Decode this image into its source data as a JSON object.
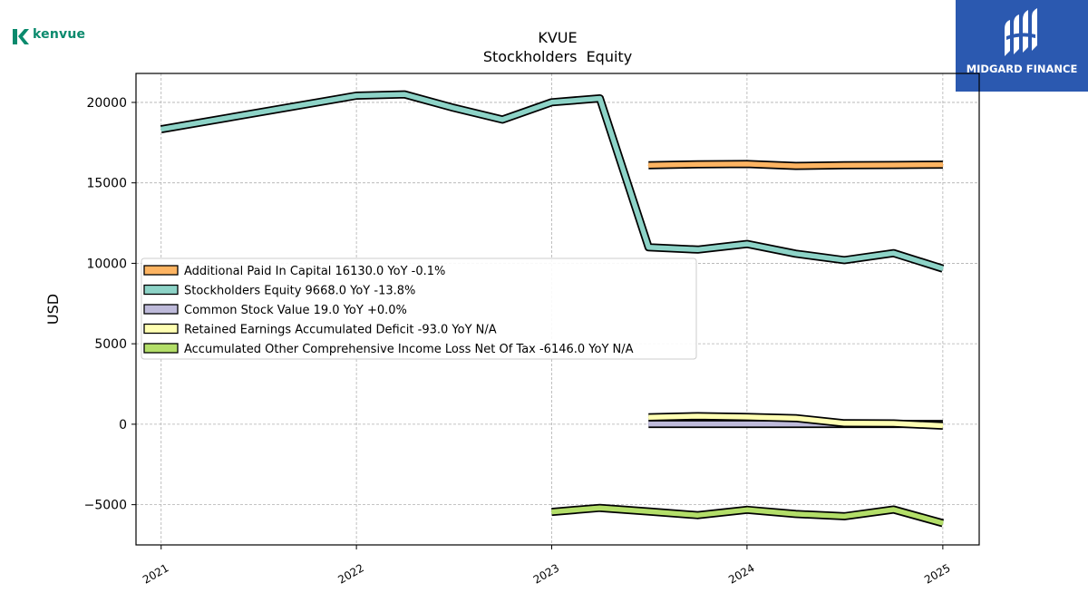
{
  "branding": {
    "company_logo_text": "kenvue",
    "company_logo_color": "#0a8a6d",
    "publisher_name": "MIDGARD FINANCE",
    "publisher_bg": "#2b59b0"
  },
  "chart_data": {
    "type": "area",
    "title": "KVUE",
    "subtitle": "Stockholders  Equity",
    "xlabel": "",
    "ylabel": "USD",
    "xlim": [
      "2020-11-15",
      "2025-03-10"
    ],
    "ylim": [
      -7500,
      21800
    ],
    "x_ticks": [
      "2021",
      "2022",
      "2023",
      "2024",
      "2025"
    ],
    "y_ticks": [
      -5000,
      0,
      5000,
      10000,
      15000,
      20000
    ],
    "y_tick_labels": [
      "−5000",
      "0",
      "5000",
      "10000",
      "15000",
      "20000"
    ],
    "grid": true,
    "legend_placement": "center-left",
    "series": [
      {
        "name": "Additional Paid In Capital  16130.0 YoY -0.1%",
        "color": "#fdb462",
        "points": [
          [
            "2023-07-01",
            16100
          ],
          [
            "2023-10-01",
            16150
          ],
          [
            "2024-01-01",
            16170
          ],
          [
            "2024-04-01",
            16050
          ],
          [
            "2024-07-01",
            16090
          ],
          [
            "2024-10-01",
            16110
          ],
          [
            "2025-01-01",
            16130
          ]
        ]
      },
      {
        "name": "Stockholders Equity  9668.0 YoY -13.8%",
        "color": "#8dd3c7",
        "points": [
          [
            "2021-01-01",
            18330
          ],
          [
            "2022-01-01",
            20420
          ],
          [
            "2022-04-01",
            20500
          ],
          [
            "2022-07-01",
            19670
          ],
          [
            "2022-10-01",
            18930
          ],
          [
            "2023-01-01",
            20010
          ],
          [
            "2023-04-01",
            20250
          ],
          [
            "2023-07-01",
            11000
          ],
          [
            "2023-10-01",
            10850
          ],
          [
            "2024-01-01",
            11200
          ],
          [
            "2024-04-01",
            10600
          ],
          [
            "2024-07-01",
            10200
          ],
          [
            "2024-10-01",
            10630
          ],
          [
            "2025-01-01",
            9668
          ]
        ]
      },
      {
        "name": "Common Stock Value  19.0 YoY +0.0%",
        "color": "#bebada",
        "points": [
          [
            "2023-07-01",
            19
          ],
          [
            "2023-10-01",
            19
          ],
          [
            "2024-01-01",
            19
          ],
          [
            "2024-04-01",
            19
          ],
          [
            "2024-07-01",
            19
          ],
          [
            "2024-10-01",
            19
          ],
          [
            "2025-01-01",
            19
          ]
        ]
      },
      {
        "name": "Retained Earnings Accumulated Deficit  -93.0 YoY N/A",
        "color": "#ffffb3",
        "points": [
          [
            "2023-07-01",
            430
          ],
          [
            "2023-10-01",
            500
          ],
          [
            "2024-01-01",
            450
          ],
          [
            "2024-04-01",
            380
          ],
          [
            "2024-07-01",
            60
          ],
          [
            "2024-10-01",
            50
          ],
          [
            "2025-01-01",
            -93
          ]
        ]
      },
      {
        "name": "Accumulated Other Comprehensive Income Loss Net Of Tax  -6146.0 YoY N/A",
        "color": "#b3de69",
        "points": [
          [
            "2023-01-01",
            -5450
          ],
          [
            "2023-04-01",
            -5200
          ],
          [
            "2023-07-01",
            -5420
          ],
          [
            "2023-10-01",
            -5650
          ],
          [
            "2024-01-01",
            -5320
          ],
          [
            "2024-04-01",
            -5580
          ],
          [
            "2024-07-01",
            -5720
          ],
          [
            "2024-10-01",
            -5300
          ],
          [
            "2025-01-01",
            -6146
          ]
        ]
      }
    ]
  }
}
